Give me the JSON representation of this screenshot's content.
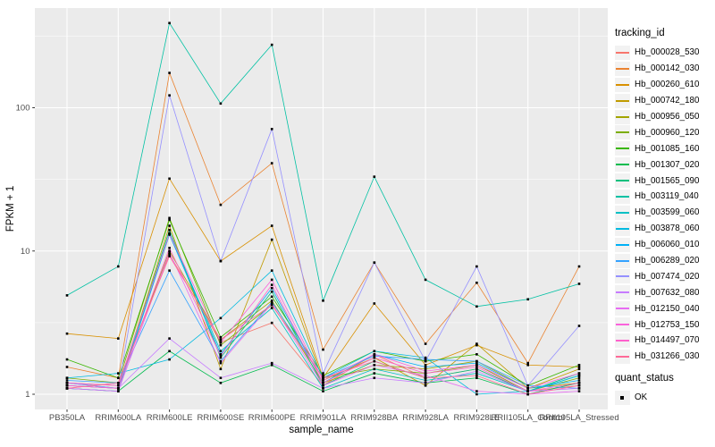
{
  "chart_data": {
    "type": "line",
    "title": "",
    "xlabel": "sample_name",
    "ylabel": "FPKM + 1",
    "y_scale": "log10",
    "y_ticks": [
      1,
      10,
      100
    ],
    "y_tick_labels": [
      "1",
      "10",
      "100"
    ],
    "y_minor_breaks": [
      3.162,
      31.62,
      316.2
    ],
    "ylim": [
      0.85,
      500
    ],
    "grid": "on",
    "point_marker": "small-black-square",
    "categories": [
      "PB350LA",
      "RRIM600LA",
      "RRIM600LE",
      "RRIM600SE",
      "RRIM600PE",
      "RRIM901LA",
      "RRIM928BA",
      "RRIM928LA",
      "RRIM928LE",
      "RRII105LA_Control",
      "RRII105LA_Stressed"
    ],
    "series": [
      {
        "name": "Hb_000028_530",
        "color": "#F8766D",
        "values": [
          1.1,
          1.2,
          9.5,
          2.3,
          3.15,
          1.15,
          1.9,
          1.3,
          1.5,
          1.05,
          1.15
        ]
      },
      {
        "name": "Hb_000142_030",
        "color": "#EA8331",
        "values": [
          1.55,
          1.3,
          175,
          21,
          41,
          2.05,
          8.3,
          2.25,
          6.0,
          1.65,
          7.8
        ]
      },
      {
        "name": "Hb_000260_610",
        "color": "#D89000",
        "values": [
          2.65,
          2.45,
          32,
          8.5,
          15,
          1.3,
          4.3,
          1.6,
          2.2,
          1.6,
          1.55
        ]
      },
      {
        "name": "Hb_000742_180",
        "color": "#C09B00",
        "values": [
          1.15,
          1.1,
          15,
          1.5,
          12,
          1.25,
          1.8,
          1.15,
          2.25,
          1.1,
          1.5
        ]
      },
      {
        "name": "Hb_000956_050",
        "color": "#A3A500",
        "values": [
          1.2,
          1.15,
          10,
          2.4,
          4.5,
          1.2,
          1.6,
          1.5,
          1.7,
          1.1,
          1.2
        ]
      },
      {
        "name": "Hb_000960_120",
        "color": "#7CAE00",
        "values": [
          1.3,
          1.2,
          17,
          2.2,
          4.2,
          1.3,
          1.5,
          1.4,
          1.6,
          1.05,
          1.3
        ]
      },
      {
        "name": "Hb_001085_160",
        "color": "#39B600",
        "values": [
          1.75,
          1.3,
          16.5,
          2.5,
          4.8,
          1.35,
          2.0,
          1.7,
          1.9,
          1.15,
          1.6
        ]
      },
      {
        "name": "Hb_001307_020",
        "color": "#00BB4E",
        "values": [
          1.1,
          1.05,
          2.0,
          1.2,
          1.6,
          1.05,
          1.4,
          1.2,
          1.3,
          1.0,
          1.2
        ]
      },
      {
        "name": "Hb_001565_090",
        "color": "#00BF7D",
        "values": [
          1.2,
          1.1,
          14,
          1.8,
          5.2,
          1.15,
          1.7,
          1.3,
          1.5,
          1.05,
          1.4
        ]
      },
      {
        "name": "Hb_003119_040",
        "color": "#00C1A3",
        "values": [
          4.9,
          7.8,
          390,
          107,
          275,
          4.5,
          33,
          6.3,
          4.1,
          4.6,
          5.9
        ]
      },
      {
        "name": "Hb_003599_060",
        "color": "#00BFC4",
        "values": [
          1.15,
          1.1,
          13.3,
          2.0,
          4.0,
          1.1,
          1.5,
          1.25,
          1.4,
          1.05,
          1.35
        ]
      },
      {
        "name": "Hb_003878_060",
        "color": "#00BAE0",
        "values": [
          1.3,
          1.4,
          1.75,
          3.4,
          7.3,
          1.3,
          2.0,
          1.8,
          1.0,
          1.05,
          1.35
        ]
      },
      {
        "name": "Hb_006060_010",
        "color": "#00B0F6",
        "values": [
          1.1,
          1.05,
          13,
          1.9,
          5.5,
          1.2,
          1.9,
          1.55,
          1.65,
          1.1,
          1.25
        ]
      },
      {
        "name": "Hb_006289_020",
        "color": "#35A2FF",
        "values": [
          1.25,
          1.2,
          7.3,
          1.7,
          4.4,
          1.3,
          1.85,
          1.75,
          1.7,
          1.15,
          1.1
        ]
      },
      {
        "name": "Hb_007474_020",
        "color": "#9590FF",
        "values": [
          1.2,
          1.1,
          122,
          8.5,
          71,
          1.4,
          8.3,
          1.7,
          7.8,
          1.15,
          3.0
        ]
      },
      {
        "name": "Hb_007632_080",
        "color": "#C77CFF",
        "values": [
          1.15,
          1.1,
          2.45,
          1.3,
          1.65,
          1.1,
          1.3,
          1.2,
          1.45,
          1.05,
          1.1
        ]
      },
      {
        "name": "Hb_012150_040",
        "color": "#E76BF3",
        "values": [
          1.1,
          1.05,
          9.8,
          1.65,
          4.3,
          1.15,
          1.6,
          1.35,
          1.05,
          1.0,
          1.05
        ]
      },
      {
        "name": "Hb_012753_150",
        "color": "#FA62DB",
        "values": [
          1.2,
          1.15,
          13.2,
          2.3,
          6.3,
          1.25,
          1.9,
          1.45,
          1.6,
          1.1,
          1.4
        ]
      },
      {
        "name": "Hb_014497_070",
        "color": "#FF61CC",
        "values": [
          1.15,
          1.1,
          10.5,
          1.85,
          5.8,
          1.2,
          1.8,
          1.4,
          1.55,
          1.05,
          1.2
        ]
      },
      {
        "name": "Hb_031266_030",
        "color": "#FF6A98",
        "values": [
          1.1,
          1.2,
          9.2,
          2.4,
          4.2,
          1.3,
          1.7,
          1.3,
          1.35,
          1.0,
          1.15
        ]
      }
    ],
    "legend": {
      "position": "right",
      "color_title": "tracking_id",
      "shape_title": "quant_status",
      "shape_items": [
        {
          "label": "OK",
          "marker": "black-square"
        }
      ]
    },
    "colors": {
      "panel_background": "#EBEBEB",
      "gridline": "#FFFFFF",
      "tick_label": "#4D4D4D",
      "axis_title": "#000000",
      "point": "#000000",
      "legend_key_background": "#F2F2F2"
    }
  }
}
